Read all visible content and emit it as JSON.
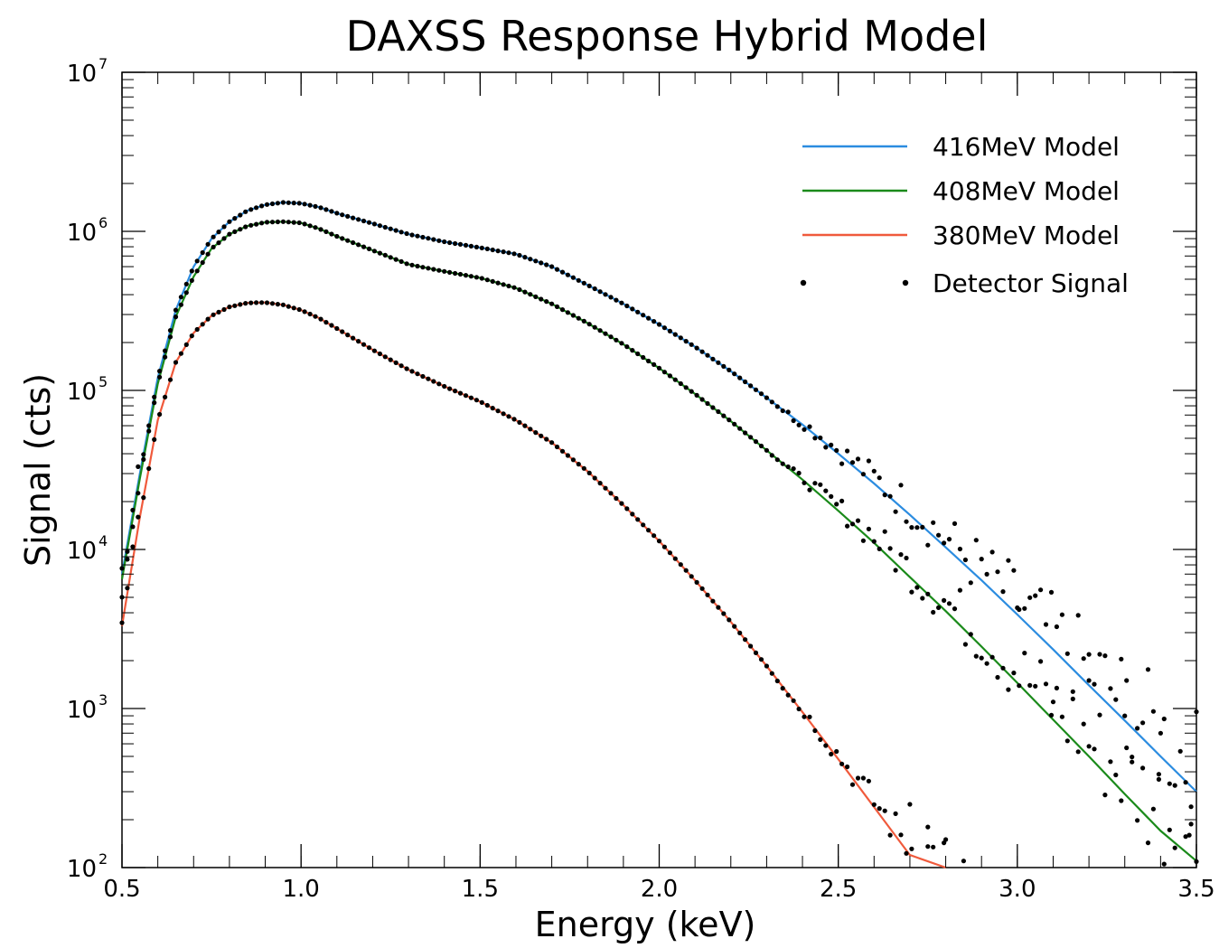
{
  "chart_data": {
    "type": "line",
    "title": "DAXSS Response Hybrid Model",
    "xlabel": "Energy (keV)",
    "ylabel": "Signal (cts)",
    "xlim": [
      0.5,
      3.5
    ],
    "ylim": [
      100,
      10000000
    ],
    "yscale": "log",
    "grid": false,
    "legend_position": "top-right",
    "x_ticks": [
      {
        "value": 0.5,
        "label": "0.5"
      },
      {
        "value": 1.0,
        "label": "1.0"
      },
      {
        "value": 1.5,
        "label": "1.5"
      },
      {
        "value": 2.0,
        "label": "2.0"
      },
      {
        "value": 2.5,
        "label": "2.5"
      },
      {
        "value": 3.0,
        "label": "3.0"
      },
      {
        "value": 3.5,
        "label": "3.5"
      }
    ],
    "y_ticks": [
      {
        "value": 100,
        "base": "10",
        "exp": "2"
      },
      {
        "value": 1000,
        "base": "10",
        "exp": "3"
      },
      {
        "value": 10000,
        "base": "10",
        "exp": "4"
      },
      {
        "value": 100000,
        "base": "10",
        "exp": "5"
      },
      {
        "value": 1000000,
        "base": "10",
        "exp": "6"
      },
      {
        "value": 10000000,
        "base": "10",
        "exp": "7"
      }
    ],
    "series": [
      {
        "name": "416MeV Model",
        "color": "#2b8ce0",
        "x": [
          0.5,
          0.55,
          0.6,
          0.65,
          0.7,
          0.75,
          0.8,
          0.85,
          0.9,
          0.95,
          1.0,
          1.05,
          1.1,
          1.2,
          1.3,
          1.4,
          1.5,
          1.6,
          1.7,
          1.8,
          1.9,
          2.0,
          2.1,
          2.2,
          2.3,
          2.4,
          2.5,
          2.6,
          2.7,
          2.8,
          2.9,
          3.0,
          3.1,
          3.2,
          3.3,
          3.4,
          3.5
        ],
        "y": [
          7000,
          30000,
          120000,
          320000,
          600000,
          900000,
          1150000,
          1350000,
          1470000,
          1520000,
          1500000,
          1420000,
          1300000,
          1120000,
          960000,
          860000,
          790000,
          720000,
          600000,
          460000,
          350000,
          260000,
          188000,
          132000,
          90000,
          61000,
          40000,
          26000,
          16500,
          10300,
          6400,
          3900,
          2350,
          1400,
          840,
          500,
          300
        ]
      },
      {
        "name": "408MeV Model",
        "color": "#1a8a1a",
        "x": [
          0.5,
          0.55,
          0.6,
          0.65,
          0.7,
          0.75,
          0.8,
          0.85,
          0.9,
          0.95,
          1.0,
          1.05,
          1.1,
          1.2,
          1.3,
          1.4,
          1.5,
          1.6,
          1.7,
          1.8,
          1.9,
          2.0,
          2.1,
          2.2,
          2.3,
          2.4,
          2.5,
          2.6,
          2.7,
          2.8,
          2.9,
          3.0,
          3.1,
          3.2,
          3.3,
          3.4,
          3.5
        ],
        "y": [
          6500,
          28000,
          110000,
          290000,
          520000,
          780000,
          960000,
          1080000,
          1140000,
          1150000,
          1130000,
          1040000,
          930000,
          760000,
          620000,
          560000,
          510000,
          440000,
          350000,
          265000,
          195000,
          138000,
          95000,
          64000,
          42000,
          27500,
          17500,
          11000,
          6700,
          4100,
          2450,
          1450,
          850,
          500,
          290,
          170,
          110
        ]
      },
      {
        "name": "380MeV Model",
        "color": "#f05a3c",
        "x": [
          0.5,
          0.55,
          0.6,
          0.65,
          0.7,
          0.75,
          0.8,
          0.85,
          0.9,
          0.95,
          1.0,
          1.05,
          1.1,
          1.2,
          1.3,
          1.4,
          1.5,
          1.6,
          1.7,
          1.8,
          1.9,
          2.0,
          2.1,
          2.2,
          2.3,
          2.4,
          2.5,
          2.6,
          2.7,
          2.8
        ],
        "y": [
          3300,
          16000,
          65000,
          150000,
          230000,
          295000,
          335000,
          355000,
          357000,
          345000,
          320000,
          285000,
          245000,
          180000,
          135000,
          106000,
          85000,
          65000,
          47000,
          31000,
          19000,
          11300,
          6400,
          3500,
          1850,
          950,
          480,
          240,
          120,
          100
        ]
      }
    ],
    "detector_signal": {
      "name": "Detector Signal",
      "color": "#000000",
      "note": "scatter points follow each model curve with increasing noise at high energy",
      "high_energy_samples": [
        {
          "x": 2.7,
          "y": 250
        },
        {
          "x": 2.75,
          "y": 180
        },
        {
          "x": 2.8,
          "y": 150
        },
        {
          "x": 2.85,
          "y": 110
        },
        {
          "x": 3.0,
          "y": 4300
        },
        {
          "x": 3.1,
          "y": 1100
        },
        {
          "x": 3.2,
          "y": 1500
        },
        {
          "x": 3.3,
          "y": 900
        },
        {
          "x": 3.4,
          "y": 700
        },
        {
          "x": 3.48,
          "y": 160
        }
      ]
    }
  }
}
